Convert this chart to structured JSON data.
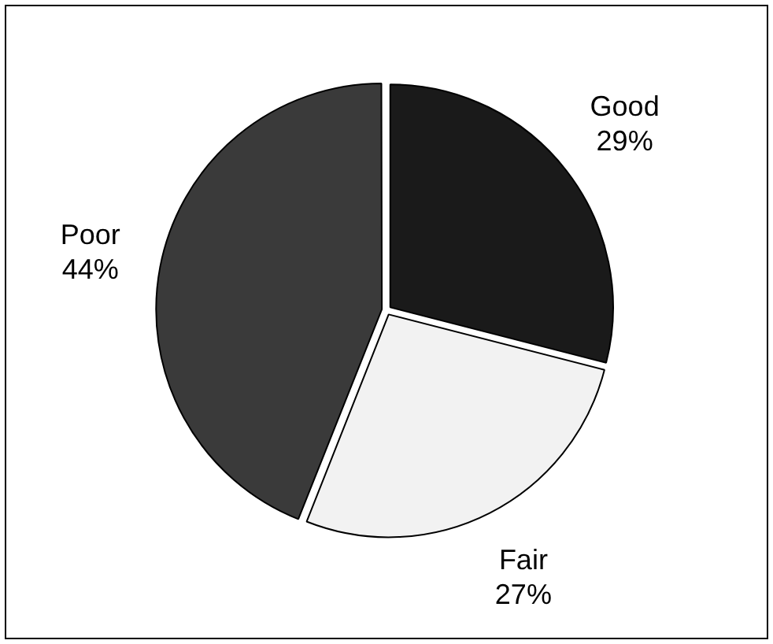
{
  "chart_data": {
    "type": "pie",
    "categories": [
      "Good",
      "Fair",
      "Poor"
    ],
    "values": [
      29,
      27,
      44
    ],
    "colors": [
      "#1a1a1a",
      "#f2f2f2",
      "#3a3a3a"
    ],
    "value_labels": [
      "29%",
      "27%",
      "44%"
    ],
    "legend": false
  }
}
